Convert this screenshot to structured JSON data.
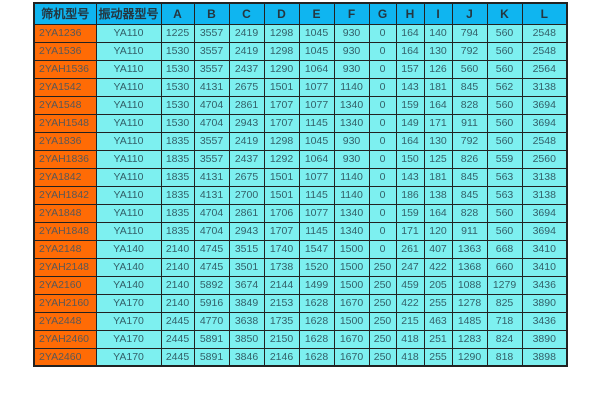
{
  "chart_data": {
    "type": "table",
    "title": "",
    "columns": [
      "筛机型号",
      "振动器型号",
      "A",
      "B",
      "C",
      "D",
      "E",
      "F",
      "G",
      "H",
      "I",
      "J",
      "K",
      "L"
    ],
    "rows": [
      [
        "2YA1236",
        "YA110",
        "1225",
        "3557",
        "2419",
        "1298",
        "1045",
        "930",
        "0",
        "164",
        "140",
        "794",
        "560",
        "2548"
      ],
      [
        "2YA1536",
        "YA110",
        "1530",
        "3557",
        "2419",
        "1298",
        "1045",
        "930",
        "0",
        "164",
        "130",
        "792",
        "560",
        "2548"
      ],
      [
        "2YAH1536",
        "YA110",
        "1530",
        "3557",
        "2437",
        "1290",
        "1064",
        "930",
        "0",
        "157",
        "126",
        "560",
        "560",
        "2564"
      ],
      [
        "2YA1542",
        "YA110",
        "1530",
        "4131",
        "2675",
        "1501",
        "1077",
        "1140",
        "0",
        "143",
        "181",
        "845",
        "562",
        "3138"
      ],
      [
        "2YA1548",
        "YA110",
        "1530",
        "4704",
        "2861",
        "1707",
        "1077",
        "1340",
        "0",
        "159",
        "164",
        "828",
        "560",
        "3694"
      ],
      [
        "2YAH1548",
        "YA110",
        "1530",
        "4704",
        "2943",
        "1707",
        "1145",
        "1340",
        "0",
        "149",
        "171",
        "911",
        "560",
        "3694"
      ],
      [
        "2YA1836",
        "YA110",
        "1835",
        "3557",
        "2419",
        "1298",
        "1045",
        "930",
        "0",
        "164",
        "130",
        "792",
        "560",
        "2548"
      ],
      [
        "2YAH1836",
        "YA110",
        "1835",
        "3557",
        "2437",
        "1292",
        "1064",
        "930",
        "0",
        "150",
        "125",
        "826",
        "559",
        "2560"
      ],
      [
        "2YA1842",
        "YA110",
        "1835",
        "4131",
        "2675",
        "1501",
        "1077",
        "1140",
        "0",
        "143",
        "181",
        "845",
        "563",
        "3138"
      ],
      [
        "2YAH1842",
        "YA110",
        "1835",
        "4131",
        "2700",
        "1501",
        "1145",
        "1140",
        "0",
        "186",
        "138",
        "845",
        "563",
        "3138"
      ],
      [
        "2YA1848",
        "YA110",
        "1835",
        "4704",
        "2861",
        "1706",
        "1077",
        "1340",
        "0",
        "159",
        "164",
        "828",
        "560",
        "3694"
      ],
      [
        "2YAH1848",
        "YA110",
        "1835",
        "4704",
        "2943",
        "1707",
        "1145",
        "1340",
        "0",
        "171",
        "120",
        "911",
        "560",
        "3694"
      ],
      [
        "2YA2148",
        "YA140",
        "2140",
        "4745",
        "3515",
        "1740",
        "1547",
        "1500",
        "0",
        "261",
        "407",
        "1363",
        "668",
        "3410"
      ],
      [
        "2YAH2148",
        "YA140",
        "2140",
        "4745",
        "3501",
        "1738",
        "1520",
        "1500",
        "250",
        "247",
        "422",
        "1368",
        "660",
        "3410"
      ],
      [
        "2YA2160",
        "YA140",
        "2140",
        "5892",
        "3674",
        "2144",
        "1499",
        "1500",
        "250",
        "459",
        "205",
        "1088",
        "1279",
        "3436"
      ],
      [
        "2YAH2160",
        "YA170",
        "2140",
        "5916",
        "3849",
        "2153",
        "1628",
        "1670",
        "250",
        "422",
        "255",
        "1278",
        "825",
        "3890"
      ],
      [
        "2YA2448",
        "YA170",
        "2445",
        "4770",
        "3638",
        "1735",
        "1628",
        "1500",
        "250",
        "215",
        "463",
        "1485",
        "718",
        "3436"
      ],
      [
        "2YAH2460",
        "YA170",
        "2445",
        "5891",
        "3850",
        "2150",
        "1628",
        "1670",
        "250",
        "418",
        "251",
        "1283",
        "824",
        "3890"
      ],
      [
        "2YA2460",
        "YA170",
        "2445",
        "5891",
        "3846",
        "2146",
        "1628",
        "1670",
        "250",
        "418",
        "255",
        "1290",
        "818",
        "3898"
      ]
    ]
  },
  "colors": {
    "header_bg": "#0fb5f0",
    "header_text": "#243640",
    "model_bg": "#ff6b05",
    "model_text": "#585858",
    "cell_bg": "#7df0f0",
    "cell_text": "#335f68",
    "border": "#222222",
    "page_bg": "#ffffff"
  }
}
